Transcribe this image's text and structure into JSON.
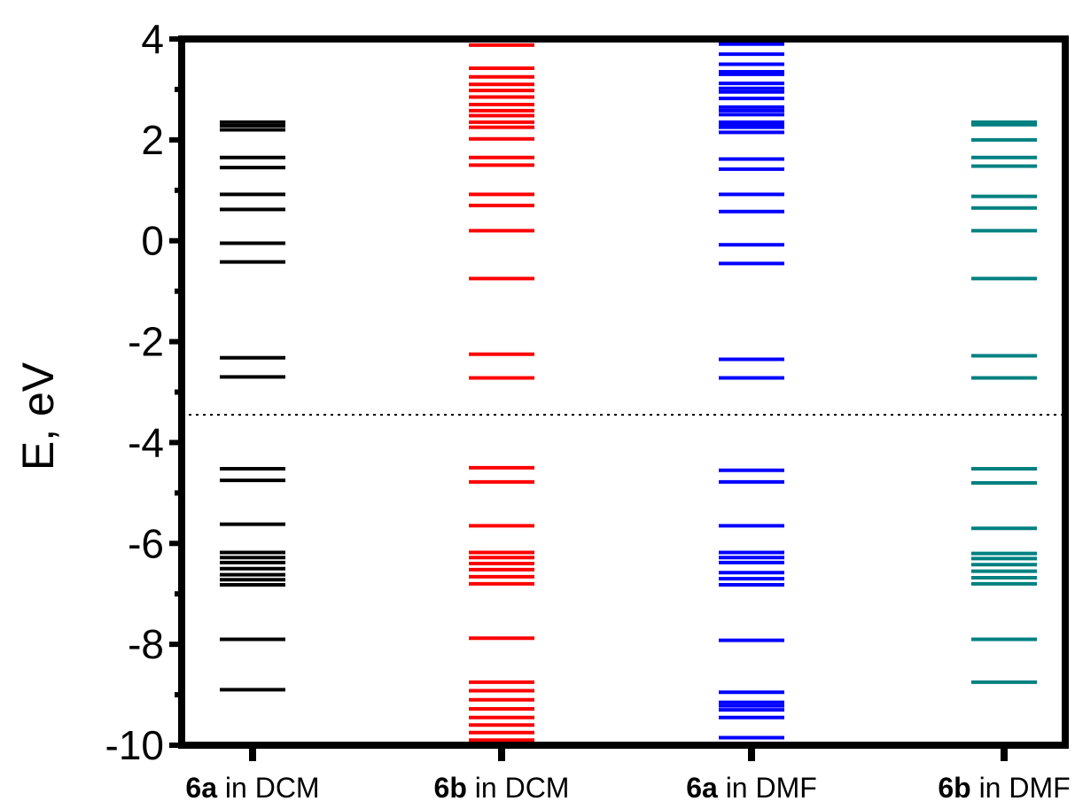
{
  "chart_data": {
    "type": "energy-level diagram",
    "ylabel": "E, eV",
    "ylim": [
      -10,
      4
    ],
    "yticks": [
      "4",
      "2",
      "0",
      "-2",
      "-4",
      "-6",
      "-8",
      "-10"
    ],
    "reference_line_y": -3.45,
    "categories": [
      {
        "bold": "6a",
        "rest": " in DCM"
      },
      {
        "bold": "6b",
        "rest": " in DCM"
      },
      {
        "bold": "6a",
        "rest": " in DMF"
      },
      {
        "bold": "6b",
        "rest": " in DMF"
      }
    ],
    "series": [
      {
        "color": "#000000",
        "levels": [
          2.35,
          2.28,
          2.2,
          1.65,
          1.45,
          0.92,
          0.62,
          -0.05,
          -0.42,
          -2.32,
          -2.7,
          -4.52,
          -4.75,
          -5.62,
          -6.18,
          -6.28,
          -6.38,
          -6.5,
          -6.62,
          -6.72,
          -6.82,
          -7.9,
          -8.9
        ]
      },
      {
        "color": "#ff0000",
        "levels": [
          3.98,
          3.88,
          3.42,
          3.25,
          3.1,
          2.98,
          2.85,
          2.7,
          2.58,
          2.48,
          2.35,
          2.25,
          2.02,
          1.65,
          1.5,
          0.92,
          0.7,
          0.2,
          -0.75,
          -2.25,
          -2.72,
          -4.5,
          -4.78,
          -5.65,
          -6.18,
          -6.28,
          -6.4,
          -6.52,
          -6.66,
          -6.8,
          -7.88,
          -8.75,
          -8.92,
          -9.1,
          -9.28,
          -9.45,
          -9.6,
          -9.75,
          -9.9,
          -10
        ]
      },
      {
        "color": "#0000ff",
        "levels": [
          4.0,
          3.9,
          3.7,
          3.5,
          3.35,
          3.3,
          3.12,
          3.02,
          2.95,
          2.82,
          2.65,
          2.58,
          2.5,
          2.35,
          2.3,
          2.25,
          2.15,
          1.62,
          1.42,
          0.92,
          0.58,
          -0.08,
          -0.45,
          -2.35,
          -2.72,
          -4.55,
          -4.78,
          -5.65,
          -6.18,
          -6.28,
          -6.38,
          -6.58,
          -6.7,
          -6.82,
          -7.92,
          -8.95,
          -9.15,
          -9.22,
          -9.3,
          -9.45,
          -9.85,
          -10
        ]
      },
      {
        "color": "#008080",
        "levels": [
          2.35,
          2.3,
          2.0,
          1.65,
          1.48,
          0.88,
          0.65,
          0.2,
          -0.75,
          -2.28,
          -2.72,
          -4.52,
          -4.8,
          -5.7,
          -6.2,
          -6.3,
          -6.42,
          -6.55,
          -6.68,
          -6.8,
          -7.9,
          -8.75
        ]
      }
    ]
  }
}
